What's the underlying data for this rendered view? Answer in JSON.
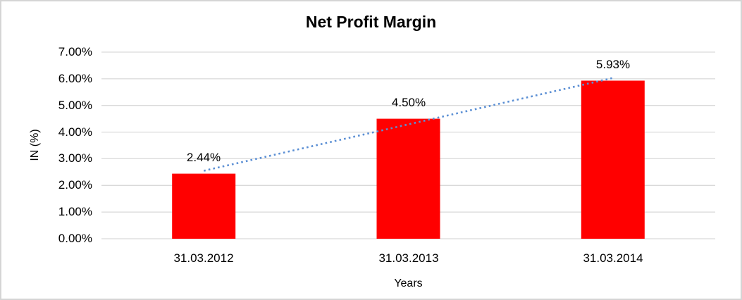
{
  "chart_data": {
    "type": "bar",
    "title": "Net Profit Margin",
    "xlabel": "Years",
    "ylabel": "IN (%)",
    "categories": [
      "31.03.2012",
      "31.03.2013",
      "31.03.2014"
    ],
    "values": [
      2.44,
      4.5,
      5.93
    ],
    "data_labels": [
      "2.44%",
      "4.50%",
      "5.93%"
    ],
    "ylim": [
      0,
      7
    ],
    "yticks": [
      0,
      1,
      2,
      3,
      4,
      5,
      6,
      7
    ],
    "ytick_labels": [
      "0.00%",
      "1.00%",
      "2.00%",
      "3.00%",
      "4.00%",
      "5.00%",
      "6.00%",
      "7.00%"
    ],
    "grid": true,
    "legend": "none",
    "colors": {
      "bar": "#FF0000",
      "gridline": "#D9D9D9",
      "trendline": "#5B8FD4",
      "frame": "#D5D5D5",
      "text": "#000000"
    },
    "trendline": {
      "type": "linear",
      "line_style": "dotted",
      "start_value": 2.55,
      "end_value": 6.03
    }
  }
}
